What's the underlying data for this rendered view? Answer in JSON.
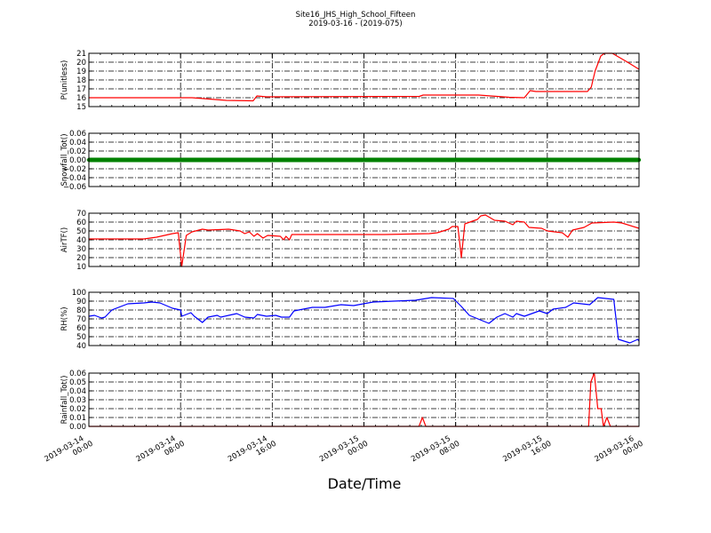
{
  "title": "Site16_JHS_High_School_Fifteen",
  "subtitle": "2019-03-16 - (2019-075)",
  "chart_data": {
    "type": "line",
    "xlabel": "Date/Time",
    "xlim": [
      "2019-03-14 00:00",
      "2019-03-16 00:00"
    ],
    "x_ticks": [
      {
        "t": "2019-03-14 00:00",
        "label": [
          "2019-03-14",
          "00:00"
        ]
      },
      {
        "t": "2019-03-14 08:00",
        "label": [
          "2019-03-14",
          "08:00"
        ]
      },
      {
        "t": "2019-03-14 16:00",
        "label": [
          "2019-03-14",
          "16:00"
        ]
      },
      {
        "t": "2019-03-15 00:00",
        "label": [
          "2019-03-15",
          "00:00"
        ]
      },
      {
        "t": "2019-03-15 08:00",
        "label": [
          "2019-03-15",
          "08:00"
        ]
      },
      {
        "t": "2019-03-15 16:00",
        "label": [
          "2019-03-15",
          "16:00"
        ]
      },
      {
        "t": "2019-03-16 00:00",
        "label": [
          "2019-03-16",
          "00:00"
        ]
      }
    ],
    "grid": true,
    "panels": [
      {
        "ylabel": "P(unitless)",
        "ylim": [
          15,
          21
        ],
        "yticks": [
          15,
          16,
          17,
          18,
          19,
          20,
          21
        ],
        "ytick_labels": [
          "15",
          "16",
          "17",
          "18",
          "19",
          "20",
          "21"
        ],
        "color": "#ff0000",
        "points": [
          [
            "2019-03-14 00:00",
            16.0
          ],
          [
            "2019-03-14 09:00",
            16.0
          ],
          [
            "2019-03-14 12:00",
            15.7
          ],
          [
            "2019-03-14 14:20",
            15.65
          ],
          [
            "2019-03-14 14:40",
            16.2
          ],
          [
            "2019-03-14 15:30",
            16.1
          ],
          [
            "2019-03-15 04:50",
            16.15
          ],
          [
            "2019-03-15 05:10",
            16.3
          ],
          [
            "2019-03-15 10:00",
            16.3
          ],
          [
            "2019-03-15 12:40",
            16.05
          ],
          [
            "2019-03-15 14:00",
            16.0
          ],
          [
            "2019-03-15 14:30",
            16.8
          ],
          [
            "2019-03-15 15:00",
            16.7
          ],
          [
            "2019-03-15 19:30",
            16.7
          ],
          [
            "2019-03-15 19:50",
            17.2
          ],
          [
            "2019-03-15 20:10",
            19.0
          ],
          [
            "2019-03-15 20:40",
            20.7
          ],
          [
            "2019-03-15 21:00",
            21.0
          ],
          [
            "2019-03-15 21:40",
            21.0
          ],
          [
            "2019-03-15 23:00",
            20.0
          ],
          [
            "2019-03-16 00:00",
            19.2
          ]
        ]
      },
      {
        "ylabel": "Snowfall_Tot()",
        "ylim": [
          -0.06,
          0.06
        ],
        "yticks": [
          -0.06,
          -0.04,
          -0.02,
          0,
          0.02,
          0.04,
          0.06
        ],
        "ytick_labels": [
          "−0.06",
          "−0.04",
          "−0.02",
          "0.00",
          "0.02",
          "0.04",
          "0.06"
        ],
        "color": "#008000",
        "markers": true,
        "points": [
          [
            "2019-03-14 00:00",
            0
          ],
          [
            "2019-03-16 00:00",
            0
          ]
        ]
      },
      {
        "ylabel": "AirTF()",
        "ylim": [
          10,
          70
        ],
        "yticks": [
          10,
          20,
          30,
          40,
          50,
          60,
          70
        ],
        "ytick_labels": [
          "10",
          "20",
          "30",
          "40",
          "50",
          "60",
          "70"
        ],
        "color": "#ff0000",
        "points": [
          [
            "2019-03-14 00:00",
            41
          ],
          [
            "2019-03-14 04:48",
            41
          ],
          [
            "2019-03-14 05:54",
            43
          ],
          [
            "2019-03-14 07:18",
            47
          ],
          [
            "2019-03-14 07:48",
            48
          ],
          [
            "2019-03-14 08:06",
            10
          ],
          [
            "2019-03-14 08:30",
            45
          ],
          [
            "2019-03-14 09:00",
            49
          ],
          [
            "2019-03-14 09:54",
            52
          ],
          [
            "2019-03-14 10:24",
            51
          ],
          [
            "2019-03-14 12:12",
            52
          ],
          [
            "2019-03-14 13:12",
            50
          ],
          [
            "2019-03-14 13:36",
            47
          ],
          [
            "2019-03-14 14:00",
            49
          ],
          [
            "2019-03-14 14:24",
            44
          ],
          [
            "2019-03-14 14:42",
            47
          ],
          [
            "2019-03-14 15:12",
            42
          ],
          [
            "2019-03-14 15:36",
            45
          ],
          [
            "2019-03-14 16:42",
            44
          ],
          [
            "2019-03-14 17:00",
            40
          ],
          [
            "2019-03-14 17:12",
            44
          ],
          [
            "2019-03-14 17:30",
            40
          ],
          [
            "2019-03-14 17:42",
            46
          ],
          [
            "2019-03-15 01:48",
            46
          ],
          [
            "2019-03-15 05:42",
            47
          ],
          [
            "2019-03-15 06:24",
            48
          ],
          [
            "2019-03-15 07:24",
            52
          ],
          [
            "2019-03-15 07:42",
            55
          ],
          [
            "2019-03-15 08:12",
            55
          ],
          [
            "2019-03-15 08:30",
            20
          ],
          [
            "2019-03-15 08:48",
            58
          ],
          [
            "2019-03-15 09:54",
            63
          ],
          [
            "2019-03-15 10:12",
            67
          ],
          [
            "2019-03-15 10:36",
            68
          ],
          [
            "2019-03-15 11:24",
            62
          ],
          [
            "2019-03-15 12:18",
            61
          ],
          [
            "2019-03-15 13:00",
            57
          ],
          [
            "2019-03-15 13:18",
            61
          ],
          [
            "2019-03-15 14:00",
            60
          ],
          [
            "2019-03-15 14:24",
            54
          ],
          [
            "2019-03-15 15:30",
            53
          ],
          [
            "2019-03-15 16:00",
            50
          ],
          [
            "2019-03-15 17:18",
            48
          ],
          [
            "2019-03-15 17:48",
            43
          ],
          [
            "2019-03-15 18:12",
            51
          ],
          [
            "2019-03-15 19:12",
            54
          ],
          [
            "2019-03-15 19:54",
            59
          ],
          [
            "2019-03-15 21:48",
            60
          ],
          [
            "2019-03-15 22:30",
            59
          ],
          [
            "2019-03-16 00:00",
            53
          ]
        ]
      },
      {
        "ylabel": "RH(%)",
        "ylim": [
          40,
          100
        ],
        "yticks": [
          40,
          50,
          60,
          70,
          80,
          90,
          100
        ],
        "ytick_labels": [
          "40",
          "50",
          "60",
          "70",
          "80",
          "90",
          "100"
        ],
        "color": "#0000ff",
        "points": [
          [
            "2019-03-14 00:00",
            73
          ],
          [
            "2019-03-14 00:30",
            74
          ],
          [
            "2019-03-14 01:06",
            71
          ],
          [
            "2019-03-14 01:24",
            72
          ],
          [
            "2019-03-14 02:00",
            80
          ],
          [
            "2019-03-14 03:24",
            87
          ],
          [
            "2019-03-14 04:48",
            88
          ],
          [
            "2019-03-14 05:30",
            89
          ],
          [
            "2019-03-14 06:12",
            88
          ],
          [
            "2019-03-14 07:18",
            82
          ],
          [
            "2019-03-14 08:00",
            80
          ],
          [
            "2019-03-14 08:06",
            73
          ],
          [
            "2019-03-14 08:54",
            77
          ],
          [
            "2019-03-14 09:12",
            73
          ],
          [
            "2019-03-14 09:54",
            66
          ],
          [
            "2019-03-14 10:24",
            72
          ],
          [
            "2019-03-14 11:12",
            74
          ],
          [
            "2019-03-14 11:30",
            72
          ],
          [
            "2019-03-14 12:12",
            74
          ],
          [
            "2019-03-14 12:54",
            76
          ],
          [
            "2019-03-14 13:36",
            72
          ],
          [
            "2019-03-14 14:24",
            71
          ],
          [
            "2019-03-14 14:42",
            75
          ],
          [
            "2019-03-14 15:30",
            73
          ],
          [
            "2019-03-14 16:18",
            74
          ],
          [
            "2019-03-14 16:48",
            72
          ],
          [
            "2019-03-14 17:30",
            72
          ],
          [
            "2019-03-14 17:54",
            79
          ],
          [
            "2019-03-14 19:30",
            83
          ],
          [
            "2019-03-14 20:36",
            83
          ],
          [
            "2019-03-14 22:00",
            86
          ],
          [
            "2019-03-14 23:06",
            85
          ],
          [
            "2019-03-15 00:48",
            89
          ],
          [
            "2019-03-15 02:36",
            90
          ],
          [
            "2019-03-15 04:30",
            91
          ],
          [
            "2019-03-15 05:54",
            94
          ],
          [
            "2019-03-15 07:48",
            93
          ],
          [
            "2019-03-15 08:30",
            84
          ],
          [
            "2019-03-15 09:12",
            74
          ],
          [
            "2019-03-15 10:54",
            65
          ],
          [
            "2019-03-15 11:36",
            72
          ],
          [
            "2019-03-15 12:18",
            76
          ],
          [
            "2019-03-15 13:00",
            72
          ],
          [
            "2019-03-15 13:18",
            76
          ],
          [
            "2019-03-15 14:00",
            73
          ],
          [
            "2019-03-15 15:18",
            79
          ],
          [
            "2019-03-15 16:00",
            76
          ],
          [
            "2019-03-15 16:30",
            81
          ],
          [
            "2019-03-15 17:36",
            83
          ],
          [
            "2019-03-15 18:18",
            88
          ],
          [
            "2019-03-15 19:42",
            86
          ],
          [
            "2019-03-15 20:24",
            94
          ],
          [
            "2019-03-15 21:48",
            92
          ],
          [
            "2019-03-15 22:12",
            47
          ],
          [
            "2019-03-15 23:12",
            43
          ],
          [
            "2019-03-15 23:54",
            47
          ],
          [
            "2019-03-16 00:00",
            45
          ]
        ]
      },
      {
        "ylabel": "Rainfall_Tot()",
        "ylim": [
          0,
          0.06
        ],
        "yticks": [
          0,
          0.01,
          0.02,
          0.03,
          0.04,
          0.05,
          0.06
        ],
        "ytick_labels": [
          "0.00",
          "0.01",
          "0.02",
          "0.03",
          "0.04",
          "0.05",
          "0.06"
        ],
        "color": "#ff0000",
        "points": [
          [
            "2019-03-14 00:00",
            0
          ],
          [
            "2019-03-15 04:48",
            0
          ],
          [
            "2019-03-15 05:06",
            0.01
          ],
          [
            "2019-03-15 05:24",
            0
          ],
          [
            "2019-03-15 19:36",
            0
          ],
          [
            "2019-03-15 19:48",
            0.05
          ],
          [
            "2019-03-15 20:06",
            0.06
          ],
          [
            "2019-03-15 20:24",
            0.02
          ],
          [
            "2019-03-15 20:42",
            0.02
          ],
          [
            "2019-03-15 20:54",
            0
          ],
          [
            "2019-03-15 21:12",
            0.01
          ],
          [
            "2019-03-15 21:30",
            0
          ],
          [
            "2019-03-16 00:00",
            0
          ]
        ]
      }
    ]
  }
}
